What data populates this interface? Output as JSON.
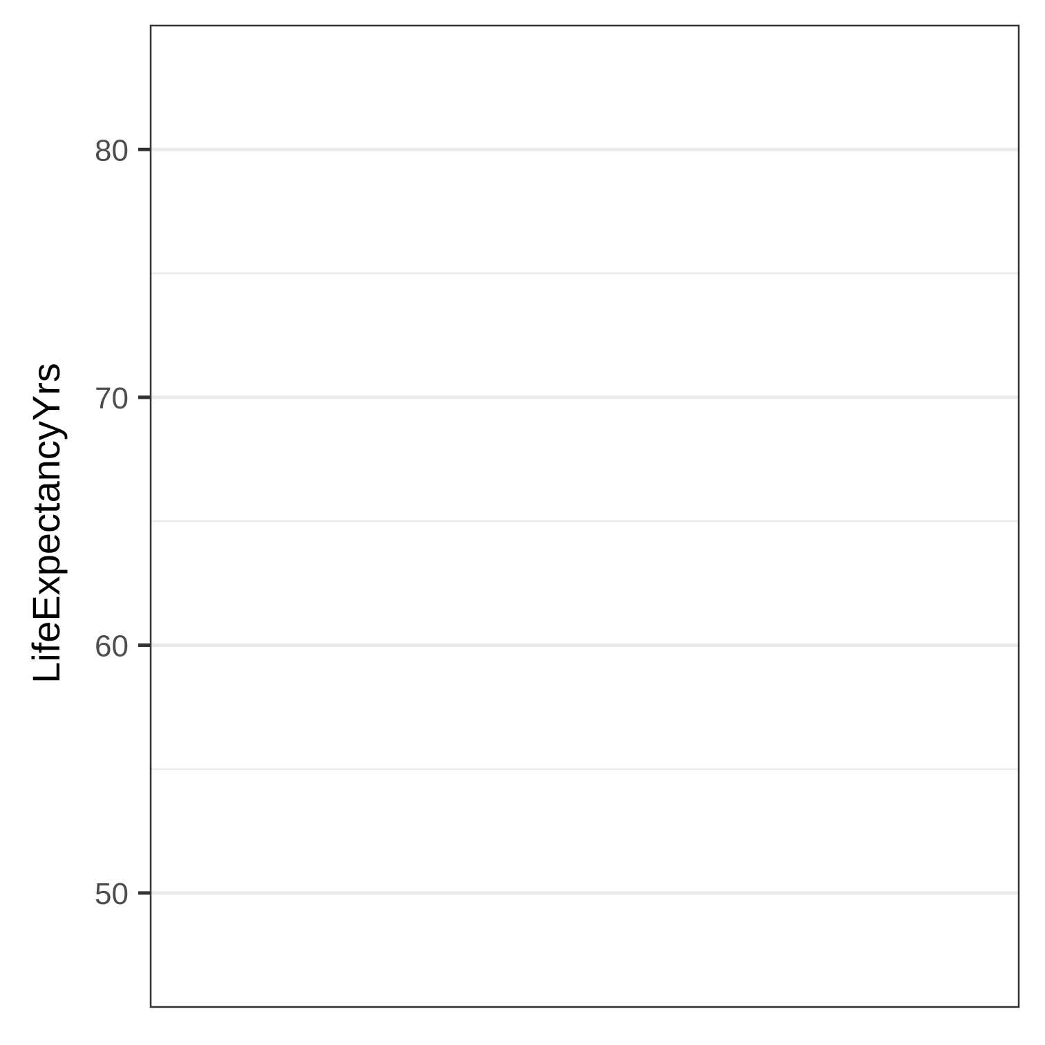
{
  "chart_data": {
    "type": "scatter",
    "title": "",
    "xlabel": "",
    "ylabel": "LifeExpectancyYrs",
    "ylim": [
      45.4,
      85
    ],
    "y_ticks": [
      50,
      60,
      70,
      80
    ],
    "y_tick_labels": [
      "50",
      "60",
      "70",
      "80"
    ],
    "y_minor_ticks": [
      55,
      65,
      75
    ],
    "x_ticks": [],
    "series": [],
    "grid": true,
    "legend": "none",
    "colors": {
      "background": "#ffffff",
      "panel_border": "#333333",
      "grid_major": "#ebebeb",
      "grid_minor": "#ebebeb",
      "tick_label": "#4d4d4d",
      "axis_title": "#000000",
      "tick_mark": "#333333"
    }
  }
}
